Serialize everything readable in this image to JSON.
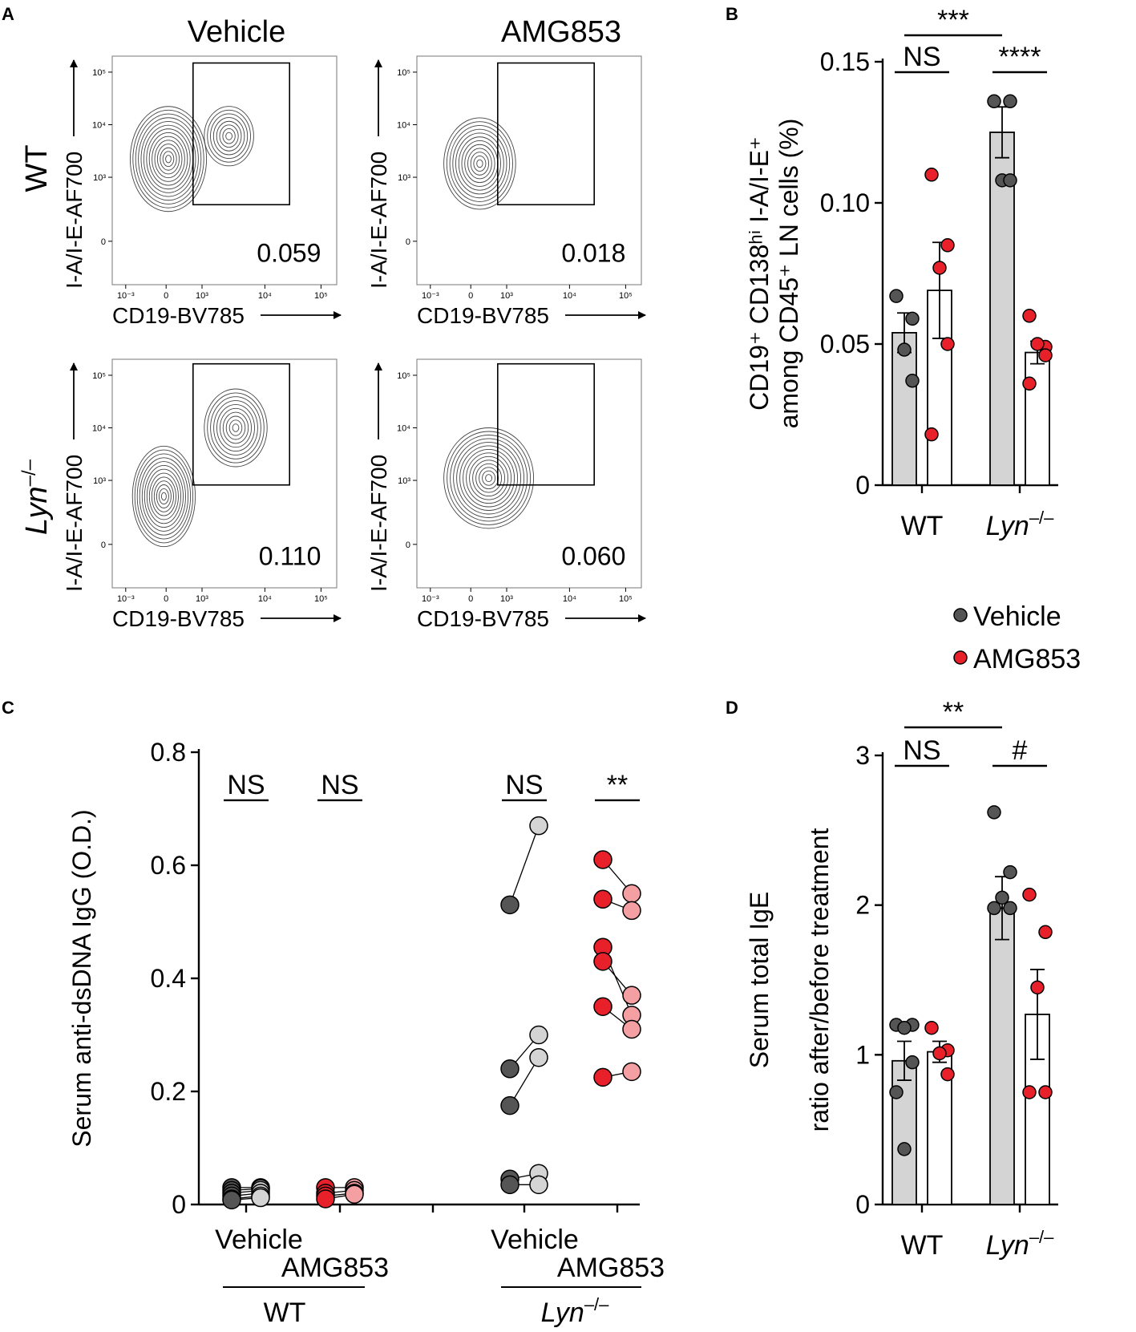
{
  "panels": {
    "A": {
      "letter": "A",
      "columns": [
        "Vehicle",
        "AMG853"
      ],
      "rows": [
        {
          "label": "WT",
          "italic": false,
          "superscript": ""
        },
        {
          "label": "Lyn",
          "italic": true,
          "superscript": "–/–"
        }
      ],
      "x_axis_label": "CD19-BV785",
      "y_axis_label": "I-A/I-E-AF700",
      "x_ticks": [
        "10⁻³",
        "0",
        "10³",
        "10⁴",
        "10⁵"
      ],
      "y_ticks": [
        "10⁵",
        "10⁴",
        "10³",
        "0"
      ],
      "gate_values": [
        [
          "0.059",
          "0.018"
        ],
        [
          "0.110",
          "0.060"
        ]
      ]
    },
    "B": {
      "letter": "B"
    },
    "C": {
      "letter": "C"
    },
    "D": {
      "letter": "D"
    }
  },
  "legend": {
    "items": [
      {
        "label": "Vehicle",
        "color": "#555555"
      },
      {
        "label": "AMG853",
        "color": "#e8202a"
      }
    ]
  },
  "chart_data": [
    {
      "id": "B",
      "type": "bar",
      "ylabel_line1": "CD19⁺ CD138ʰⁱ I-A/I-E⁺",
      "ylabel_line2": "among CD45⁺ LN cells (%)",
      "ylim": [
        0,
        0.15
      ],
      "yticks": [
        0,
        0.05,
        0.1,
        0.15
      ],
      "ytick_labels": [
        "0",
        "0.05",
        "0.10",
        "0.15"
      ],
      "groups": [
        {
          "label": "WT",
          "italic": false,
          "superscript": ""
        },
        {
          "label": "Lyn",
          "italic": true,
          "superscript": "–/–"
        }
      ],
      "series": [
        {
          "name": "Vehicle",
          "bar_color": "#d4d4d4",
          "dot_color": "#555555",
          "means": [
            0.054,
            0.125
          ],
          "sem": [
            0.007,
            0.009
          ],
          "points": [
            [
              0.067,
              0.059,
              0.048,
              0.037
            ],
            [
              0.136,
              0.136,
              0.108,
              0.108
            ]
          ]
        },
        {
          "name": "AMG853",
          "bar_color": "#ffffff",
          "dot_color": "#e8202a",
          "means": [
            0.069,
            0.047
          ],
          "sem": [
            0.017,
            0.004
          ],
          "points": [
            [
              0.11,
              0.085,
              0.077,
              0.05,
              0.018
            ],
            [
              0.06,
              0.049,
              0.05,
              0.046,
              0.036
            ]
          ]
        }
      ],
      "significance": [
        {
          "label": "NS",
          "from": [
            0,
            0
          ],
          "to": [
            0,
            1
          ],
          "level": 0
        },
        {
          "label": "****",
          "from": [
            1,
            0
          ],
          "to": [
            1,
            1
          ],
          "level": 0
        },
        {
          "label": "***",
          "from": [
            0,
            0
          ],
          "to": [
            1,
            0
          ],
          "level": 1
        }
      ]
    },
    {
      "id": "C",
      "type": "scatter",
      "ylabel": "Serum anti-dsDNA IgG (O.D.)",
      "ylim": [
        0,
        0.8
      ],
      "yticks": [
        0,
        0.2,
        0.4,
        0.6,
        0.8
      ],
      "ytick_labels": [
        "0",
        "0.2",
        "0.4",
        "0.6",
        "0.8"
      ],
      "treatment_labels": [
        "Vehicle",
        "AMG853",
        "Vehicle",
        "AMG853"
      ],
      "genotype_labels": [
        {
          "label": "WT",
          "italic": false,
          "superscript": ""
        },
        {
          "label": "Lyn",
          "italic": true,
          "superscript": "–/–"
        }
      ],
      "groups": [
        {
          "name": "WT Vehicle",
          "before_color": "#555555",
          "after_color": "#d4d4d4",
          "pairs": [
            [
              0.03,
              0.03
            ],
            [
              0.025,
              0.028
            ],
            [
              0.02,
              0.025
            ],
            [
              0.015,
              0.02
            ],
            [
              0.01,
              0.015
            ],
            [
              0.008,
              0.012
            ]
          ],
          "sig": "NS"
        },
        {
          "name": "WT AMG853",
          "before_color": "#e8202a",
          "after_color": "#f4a0a3",
          "pairs": [
            [
              0.03,
              0.03
            ],
            [
              0.02,
              0.025
            ],
            [
              0.015,
              0.02
            ],
            [
              0.01,
              0.018
            ]
          ],
          "sig": "NS"
        },
        {
          "name": "Lyn Vehicle",
          "before_color": "#555555",
          "after_color": "#d4d4d4",
          "pairs": [
            [
              0.53,
              0.67
            ],
            [
              0.24,
              0.3
            ],
            [
              0.175,
              0.26
            ],
            [
              0.045,
              0.055
            ],
            [
              0.035,
              0.035
            ]
          ],
          "sig": "NS"
        },
        {
          "name": "Lyn AMG853",
          "before_color": "#e8202a",
          "after_color": "#f4a0a3",
          "pairs": [
            [
              0.61,
              0.55
            ],
            [
              0.54,
              0.52
            ],
            [
              0.455,
              0.335
            ],
            [
              0.43,
              0.37
            ],
            [
              0.35,
              0.31
            ],
            [
              0.225,
              0.235
            ]
          ],
          "sig": "**"
        }
      ]
    },
    {
      "id": "D",
      "type": "bar",
      "ylabel_line1": "Serum total IgE",
      "ylabel_line2": "ratio after/before treatment",
      "ylim": [
        0,
        3
      ],
      "yticks": [
        0,
        1,
        2,
        3
      ],
      "ytick_labels": [
        "0",
        "1",
        "2",
        "3"
      ],
      "groups": [
        {
          "label": "WT",
          "italic": false,
          "superscript": ""
        },
        {
          "label": "Lyn",
          "italic": true,
          "superscript": "–/–"
        }
      ],
      "series": [
        {
          "name": "Vehicle",
          "bar_color": "#d4d4d4",
          "dot_color": "#555555",
          "means": [
            0.96,
            1.98
          ],
          "sem": [
            0.13,
            0.21
          ],
          "points": [
            [
              1.2,
              1.2,
              1.18,
              0.95,
              0.75,
              0.37
            ],
            [
              2.62,
              2.22,
              2.05,
              1.98,
              1.98
            ]
          ]
        },
        {
          "name": "AMG853",
          "bar_color": "#ffffff",
          "dot_color": "#e8202a",
          "means": [
            1.02,
            1.27
          ],
          "sem": [
            0.07,
            0.3
          ],
          "points": [
            [
              1.18,
              1.03,
              1.01,
              0.87
            ],
            [
              2.07,
              1.82,
              1.45,
              0.75,
              0.75
            ]
          ]
        }
      ],
      "significance": [
        {
          "label": "NS",
          "from": [
            0,
            0
          ],
          "to": [
            0,
            1
          ],
          "level": 0
        },
        {
          "label": "#",
          "from": [
            1,
            0
          ],
          "to": [
            1,
            1
          ],
          "level": 0
        },
        {
          "label": "**",
          "from": [
            0,
            0
          ],
          "to": [
            1,
            0
          ],
          "level": 1
        }
      ]
    }
  ]
}
